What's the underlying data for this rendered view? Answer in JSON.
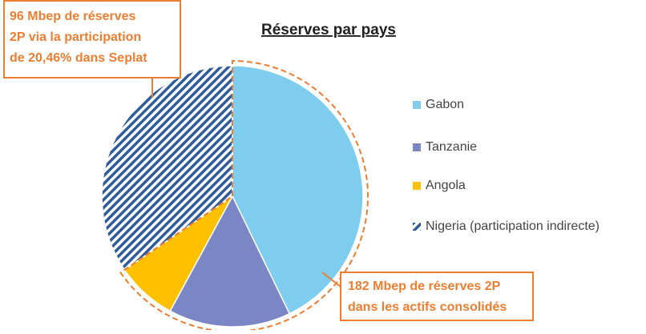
{
  "chart_data": {
    "type": "pie",
    "title": "Réserves par pays",
    "categories": [
      "Gabon",
      "Tanzanie",
      "Angola",
      "Nigeria (participation indirecte)"
    ],
    "values": [
      119,
      42,
      21,
      96
    ],
    "colors": [
      "#7fcdee",
      "#7b86c4",
      "#ffc000",
      "#2e5b9a"
    ],
    "hatch": [
      false,
      false,
      false,
      true
    ],
    "legend": "right",
    "annotations": [
      {
        "lines": [
          "96 Mbep de réserves",
          "2P via la participation",
          "de 20,46% dans Seplat"
        ]
      },
      {
        "lines": [
          "182 Mbep de réserves 2P",
          "dans les actifs consolidés"
        ]
      }
    ]
  }
}
